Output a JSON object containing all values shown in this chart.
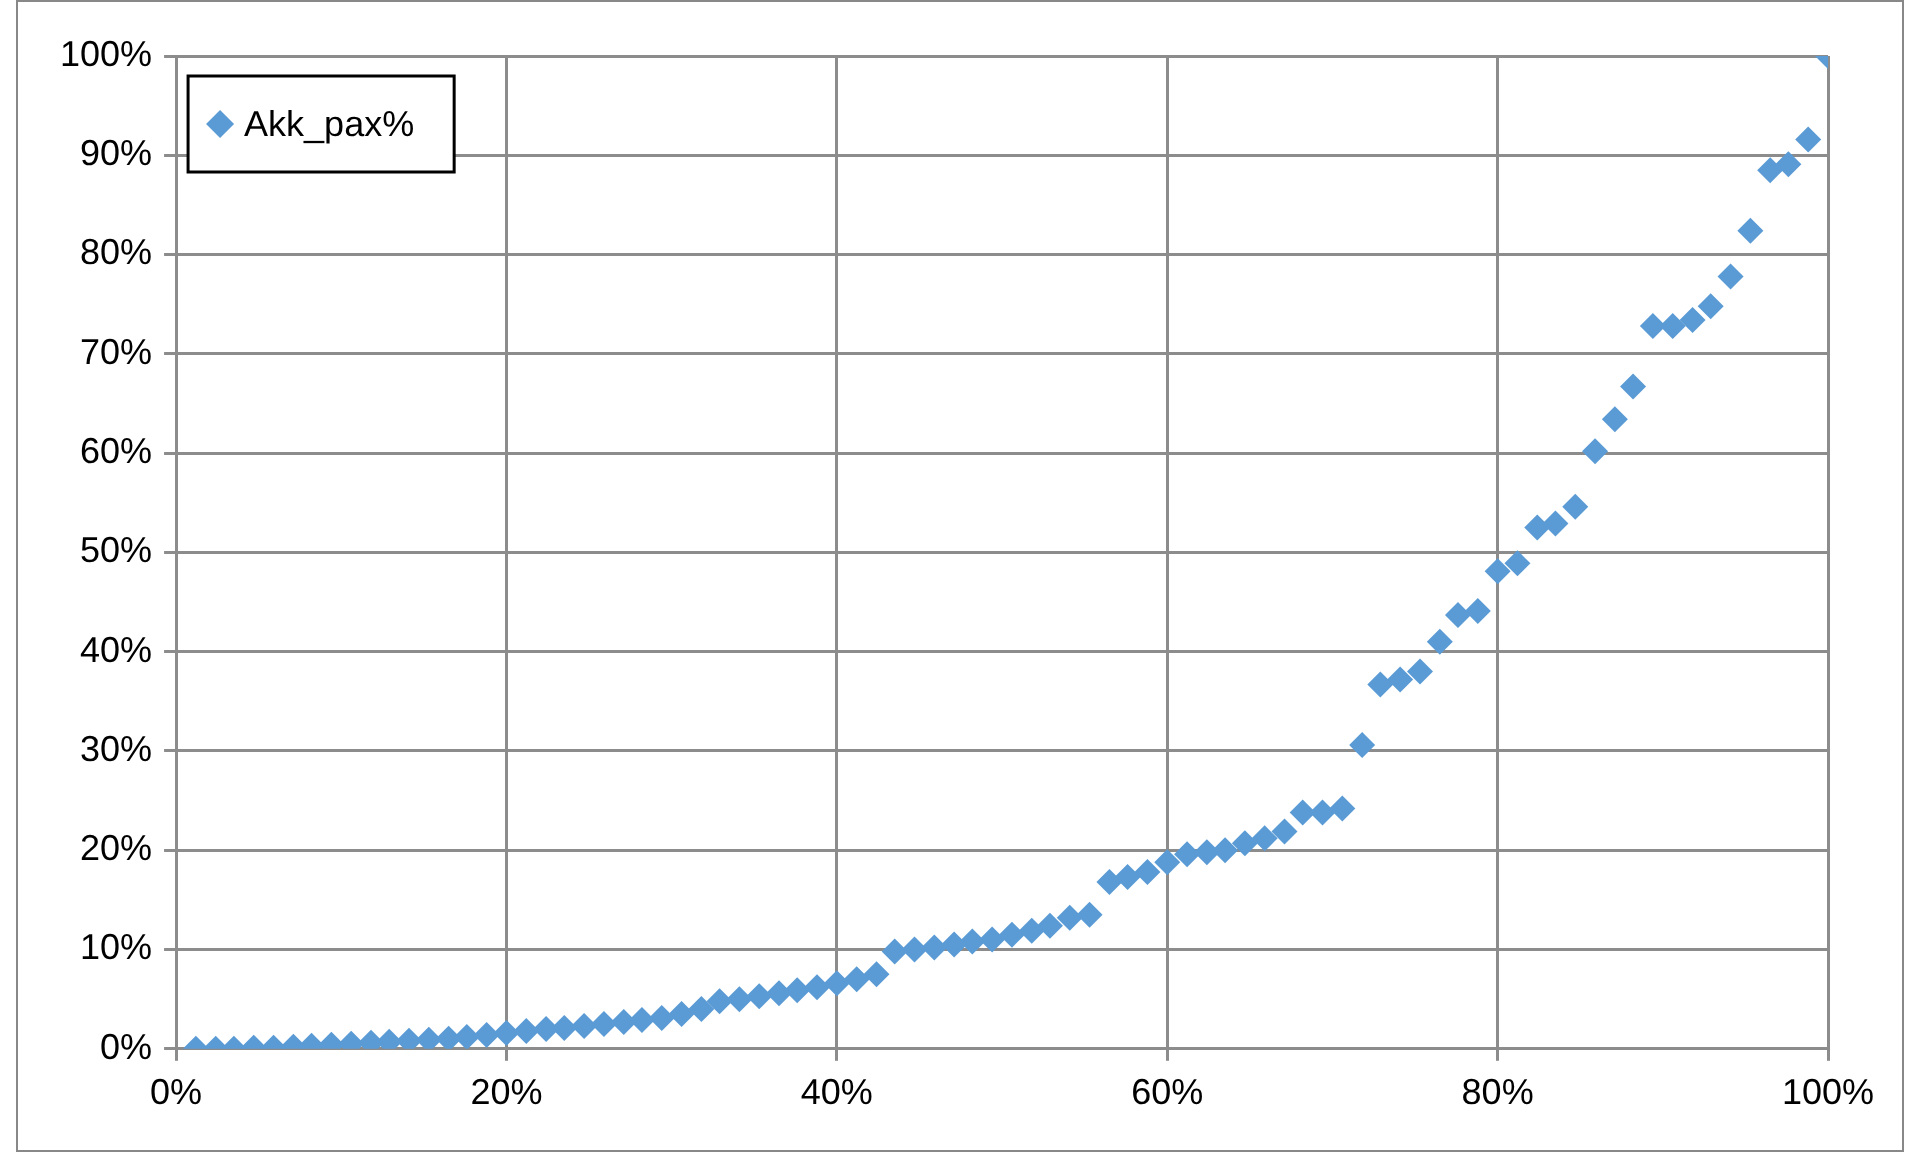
{
  "chart_data": {
    "type": "scatter",
    "marker": "diamond",
    "grid": true,
    "legend": "top left",
    "xlim": [
      0,
      100
    ],
    "ylim": [
      0,
      100
    ],
    "xticks": [
      {
        "value": 0,
        "label": "0%"
      },
      {
        "value": 20,
        "label": "20%"
      },
      {
        "value": 40,
        "label": "40%"
      },
      {
        "value": 60,
        "label": "60%"
      },
      {
        "value": 80,
        "label": "80%"
      },
      {
        "value": 100,
        "label": "100%"
      }
    ],
    "yticks": [
      {
        "value": 0,
        "label": "0%"
      },
      {
        "value": 10,
        "label": "10%"
      },
      {
        "value": 20,
        "label": "20%"
      },
      {
        "value": 30,
        "label": "30%"
      },
      {
        "value": 40,
        "label": "40%"
      },
      {
        "value": 50,
        "label": "50%"
      },
      {
        "value": 60,
        "label": "60%"
      },
      {
        "value": 70,
        "label": "70%"
      },
      {
        "value": 80,
        "label": "80%"
      },
      {
        "value": 90,
        "label": "90%"
      },
      {
        "value": 100,
        "label": "100%"
      }
    ],
    "x": [
      1.2,
      2.4,
      3.5,
      4.7,
      5.9,
      7.1,
      8.2,
      9.4,
      10.6,
      11.8,
      12.9,
      14.1,
      15.3,
      16.5,
      17.6,
      18.8,
      20.0,
      21.2,
      22.4,
      23.5,
      24.7,
      25.9,
      27.1,
      28.2,
      29.4,
      30.6,
      31.8,
      32.9,
      34.1,
      35.3,
      36.5,
      37.6,
      38.8,
      40.0,
      41.2,
      42.4,
      43.5,
      44.7,
      45.9,
      47.1,
      48.2,
      49.4,
      50.6,
      51.8,
      52.9,
      54.1,
      55.3,
      56.5,
      57.6,
      58.8,
      60.0,
      61.2,
      62.4,
      63.5,
      64.7,
      65.9,
      67.1,
      68.2,
      69.4,
      70.6,
      71.8,
      72.9,
      74.1,
      75.3,
      76.5,
      77.6,
      78.8,
      80.0,
      81.2,
      82.4,
      83.5,
      84.7,
      85.9,
      87.1,
      88.2,
      89.4,
      90.6,
      91.8,
      92.9,
      94.1,
      95.3,
      96.5,
      97.6,
      98.8,
      100
    ],
    "series": [
      {
        "name": "Akk_pax%",
        "color": "#5b9bd5",
        "values": [
          0,
          0,
          0,
          0.1,
          0.1,
          0.2,
          0.3,
          0.4,
          0.5,
          0.6,
          0.7,
          0.8,
          0.9,
          1.0,
          1.2,
          1.4,
          1.6,
          1.8,
          2.0,
          2.1,
          2.3,
          2.5,
          2.7,
          2.9,
          3.1,
          3.5,
          4.0,
          4.8,
          5.0,
          5.3,
          5.6,
          5.9,
          6.2,
          6.6,
          7.0,
          7.5,
          9.8,
          10.0,
          10.2,
          10.5,
          10.8,
          11.0,
          11.5,
          11.9,
          12.4,
          13.2,
          13.5,
          16.8,
          17.3,
          17.8,
          18.8,
          19.6,
          19.8,
          20.0,
          20.7,
          21.2,
          21.9,
          23.8,
          23.8,
          24.2,
          30.6,
          36.7,
          37.2,
          38.0,
          41.0,
          43.7,
          44.1,
          48.1,
          48.9,
          52.5,
          52.9,
          54.6,
          60.2,
          63.4,
          66.7,
          72.8,
          72.8,
          73.4,
          74.8,
          77.8,
          82.4,
          88.5,
          89.1,
          91.6,
          100
        ]
      }
    ]
  }
}
